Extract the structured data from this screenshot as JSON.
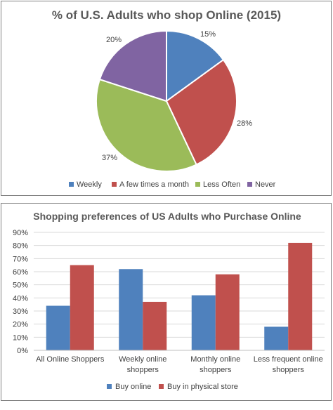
{
  "chart_data": [
    {
      "type": "pie",
      "title": "% of U.S. Adults who shop Online (2015)",
      "categories": [
        "Weekly",
        "A few times a month",
        "Less Often",
        "Never"
      ],
      "values": [
        15,
        28,
        37,
        20
      ],
      "data_labels": [
        "15%",
        "28%",
        "37%",
        "20%"
      ],
      "colors": [
        "#4f81bd",
        "#c0504d",
        "#9bbb59",
        "#8064a2"
      ],
      "legend_position": "bottom"
    },
    {
      "type": "bar",
      "title": "Shopping preferences of US Adults who Purchase Online",
      "categories": [
        [
          "All Online Shoppers"
        ],
        [
          "Weekly online",
          "shoppers"
        ],
        [
          "Monthly online",
          "shoppers"
        ],
        [
          "Less frequent online",
          "shoppers"
        ]
      ],
      "series": [
        {
          "name": "Buy online",
          "values": [
            34,
            62,
            42,
            18
          ],
          "color": "#4f81bd"
        },
        {
          "name": "Buy in physical store",
          "values": [
            65,
            37,
            58,
            82
          ],
          "color": "#c0504d"
        }
      ],
      "ylim": [
        0,
        90
      ],
      "yticks": [
        "0%",
        "10%",
        "20%",
        "30%",
        "40%",
        "50%",
        "60%",
        "70%",
        "80%",
        "90%"
      ],
      "grid": true,
      "legend_position": "bottom"
    }
  ]
}
